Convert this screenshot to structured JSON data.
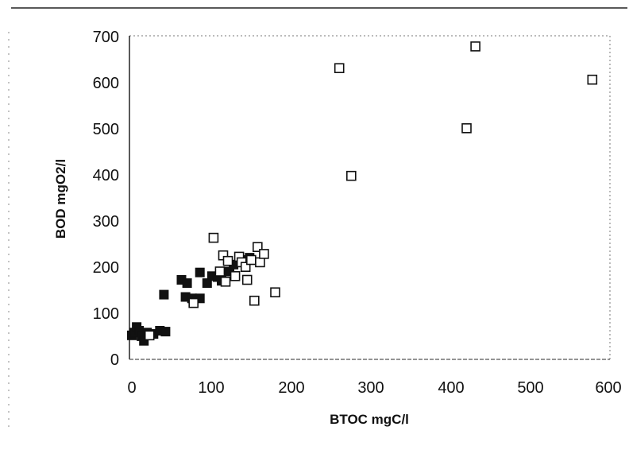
{
  "chart_data": {
    "type": "scatter",
    "title": "",
    "xlabel": "BTOC mgC/l",
    "ylabel": "BOD mgO2/l",
    "xlim": [
      0,
      600
    ],
    "ylim": [
      0,
      700
    ],
    "x_ticks": [
      "0",
      "100",
      "200",
      "300",
      "400",
      "500",
      "600"
    ],
    "y_ticks": [
      "0",
      "100",
      "200",
      "300",
      "400",
      "500",
      "600",
      "700"
    ],
    "grid": false,
    "legend": "none",
    "series": [
      {
        "marker": "filled-square",
        "color": "#111111",
        "points": [
          {
            "x": 3,
            "y": 52
          },
          {
            "x": 6,
            "y": 58
          },
          {
            "x": 9,
            "y": 70
          },
          {
            "x": 12,
            "y": 62
          },
          {
            "x": 15,
            "y": 50
          },
          {
            "x": 18,
            "y": 40
          },
          {
            "x": 22,
            "y": 58
          },
          {
            "x": 30,
            "y": 55
          },
          {
            "x": 38,
            "y": 62
          },
          {
            "x": 45,
            "y": 60
          },
          {
            "x": 43,
            "y": 140
          },
          {
            "x": 65,
            "y": 172
          },
          {
            "x": 72,
            "y": 165
          },
          {
            "x": 70,
            "y": 135
          },
          {
            "x": 78,
            "y": 132
          },
          {
            "x": 88,
            "y": 132
          },
          {
            "x": 88,
            "y": 188
          },
          {
            "x": 97,
            "y": 165
          },
          {
            "x": 103,
            "y": 180
          },
          {
            "x": 110,
            "y": 178
          },
          {
            "x": 115,
            "y": 170
          },
          {
            "x": 125,
            "y": 190
          },
          {
            "x": 130,
            "y": 205
          },
          {
            "x": 140,
            "y": 215
          },
          {
            "x": 150,
            "y": 220
          }
        ]
      },
      {
        "marker": "open-square",
        "color": "#111111",
        "points": [
          {
            "x": 25,
            "y": 52
          },
          {
            "x": 80,
            "y": 122
          },
          {
            "x": 105,
            "y": 263
          },
          {
            "x": 113,
            "y": 190
          },
          {
            "x": 117,
            "y": 225
          },
          {
            "x": 120,
            "y": 168
          },
          {
            "x": 123,
            "y": 213
          },
          {
            "x": 132,
            "y": 180
          },
          {
            "x": 137,
            "y": 222
          },
          {
            "x": 140,
            "y": 210
          },
          {
            "x": 145,
            "y": 200
          },
          {
            "x": 147,
            "y": 172
          },
          {
            "x": 152,
            "y": 215
          },
          {
            "x": 156,
            "y": 127
          },
          {
            "x": 160,
            "y": 243
          },
          {
            "x": 163,
            "y": 210
          },
          {
            "x": 168,
            "y": 228
          },
          {
            "x": 182,
            "y": 145
          },
          {
            "x": 262,
            "y": 630
          },
          {
            "x": 277,
            "y": 397
          },
          {
            "x": 421,
            "y": 500
          },
          {
            "x": 432,
            "y": 677
          },
          {
            "x": 578,
            "y": 605
          }
        ]
      }
    ]
  }
}
